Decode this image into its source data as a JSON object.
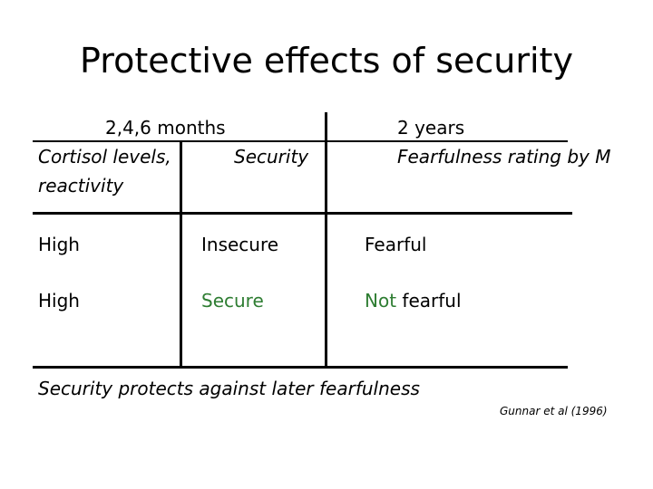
{
  "title": "Protective effects of security",
  "header": {
    "col1_top": "2,4,6 months",
    "col1_line1": "Cortisol levels,",
    "col1_line2": "reactivity",
    "col2": "Security",
    "col3_top": "2 years",
    "col3_bottom": "Fearfulness rating by M"
  },
  "rows": [
    {
      "cortisol": "High",
      "security": "Insecure",
      "fear_prefix": "",
      "fear_rest": "Fearful"
    },
    {
      "cortisol": "High",
      "security": "Secure",
      "fear_prefix": "Not",
      "fear_rest": " fearful"
    }
  ],
  "conclusion": "Security protects against later fearfulness",
  "source": "Gunnar et al (1996)",
  "colors": {
    "highlight": "#2e7d32",
    "text": "#000000"
  }
}
